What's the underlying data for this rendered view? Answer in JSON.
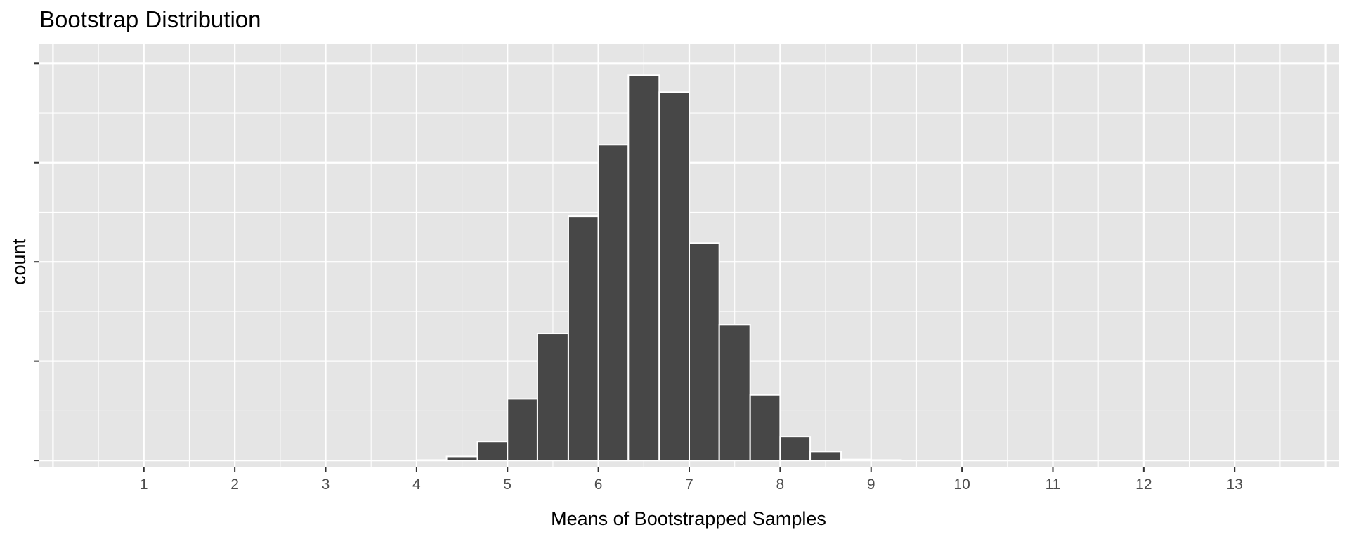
{
  "chart_data": {
    "type": "bar",
    "title": "Bootstrap Distribution",
    "xlabel": "Means of Bootstrapped Samples",
    "ylabel": "count",
    "xlim": [
      -0.15,
      14.15
    ],
    "ylim": [
      -0.07,
      4.2
    ],
    "x_ticks": [
      "1",
      "2",
      "3",
      "4",
      "5",
      "6",
      "7",
      "8",
      "9",
      "10",
      "11",
      "12",
      "13"
    ],
    "y_tick_labels_shown": false,
    "bin_width": 0.3333,
    "bins": [
      {
        "x0": 4.0,
        "x1": 4.33,
        "count": 0.005
      },
      {
        "x0": 4.33,
        "x1": 4.67,
        "count": 0.04
      },
      {
        "x0": 4.67,
        "x1": 5.0,
        "count": 0.19
      },
      {
        "x0": 5.0,
        "x1": 5.33,
        "count": 0.62
      },
      {
        "x0": 5.33,
        "x1": 5.67,
        "count": 1.28
      },
      {
        "x0": 5.67,
        "x1": 6.0,
        "count": 2.46
      },
      {
        "x0": 6.0,
        "x1": 6.33,
        "count": 3.18
      },
      {
        "x0": 6.33,
        "x1": 6.67,
        "count": 3.88
      },
      {
        "x0": 6.67,
        "x1": 7.0,
        "count": 3.71
      },
      {
        "x0": 7.0,
        "x1": 7.33,
        "count": 2.19
      },
      {
        "x0": 7.33,
        "x1": 7.67,
        "count": 1.37
      },
      {
        "x0": 7.67,
        "x1": 8.0,
        "count": 0.66
      },
      {
        "x0": 8.0,
        "x1": 8.33,
        "count": 0.24
      },
      {
        "x0": 8.33,
        "x1": 8.67,
        "count": 0.09
      },
      {
        "x0": 8.67,
        "x1": 9.0,
        "count": 0.01
      },
      {
        "x0": 9.0,
        "x1": 9.33,
        "count": 0.005
      }
    ],
    "grid": true,
    "colors": {
      "panel": "#e5e5e5",
      "grid": "#ffffff",
      "bar_fill": "#474747",
      "bar_stroke": "#ffffff",
      "tick": "#333333"
    }
  }
}
